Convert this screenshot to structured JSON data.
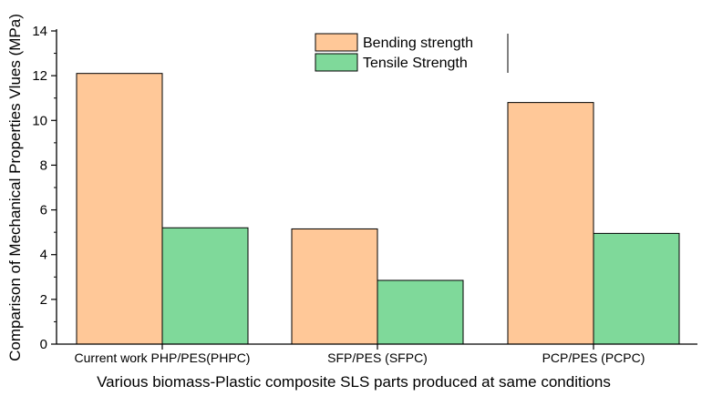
{
  "chart_data": {
    "type": "bar",
    "categories": [
      "Current work PHP/PES(PHPC)",
      "SFP/PES (SFPC)",
      "PCP/PES (PCPC)"
    ],
    "series": [
      {
        "name": "Bending strength",
        "values": [
          12.1,
          5.15,
          10.8
        ],
        "color": "#FFC898"
      },
      {
        "name": "Tensile Strength",
        "values": [
          5.2,
          2.85,
          4.95
        ],
        "color": "#7FD99A"
      }
    ],
    "xlabel": "Various biomass-Plastic composite SLS parts produced at same conditions",
    "ylabel": "Comparison of Mechanical Properties Vlues (MPa)",
    "ylim": [
      0,
      14
    ],
    "yticks": [
      "0",
      "2",
      "4",
      "6",
      "8",
      "10",
      "12",
      "14"
    ],
    "grid": false,
    "legend_position": "top-right"
  }
}
